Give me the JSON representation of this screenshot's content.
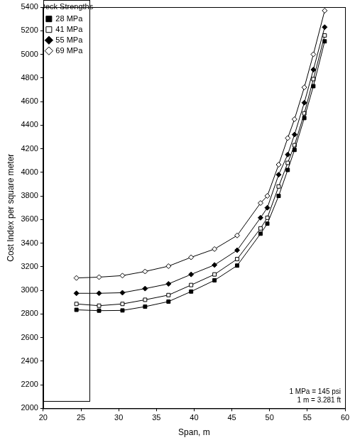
{
  "chart_data": {
    "type": "line",
    "x_label": "Span, m",
    "y_label": "Cost Index per square meter",
    "legend_title": "Deck Strengths",
    "legend": "top-left",
    "grid": false,
    "xlim": [
      20,
      60
    ],
    "xticks": [
      20,
      25,
      30,
      35,
      40,
      45,
      50,
      55,
      60
    ],
    "ylim": [
      2000,
      5400
    ],
    "yticks": [
      2000,
      2200,
      2400,
      2600,
      2800,
      3000,
      3200,
      3400,
      3600,
      3800,
      4000,
      4200,
      4400,
      4600,
      4800,
      5000,
      5200,
      5400
    ],
    "annotations": [
      "1 MPa = 145 psi",
      "1 m = 3.281 ft"
    ],
    "x": [
      24.4,
      27.4,
      30.5,
      33.5,
      36.6,
      39.6,
      42.7,
      45.7,
      48.8,
      49.7,
      51.2,
      52.4,
      53.3,
      54.6,
      55.8,
      57.3
    ],
    "series": [
      {
        "name": "28 MPa",
        "color": "#000000",
        "marker": "square",
        "values": [
          2835,
          2828,
          2830,
          2862,
          2905,
          2990,
          3085,
          3210,
          3480,
          3565,
          3800,
          4020,
          4190,
          4460,
          4730,
          5110
        ]
      },
      {
        "name": "41 MPa",
        "color": "#000000",
        "marker": "square-open",
        "values": [
          2885,
          2870,
          2885,
          2920,
          2960,
          3045,
          3135,
          3265,
          3525,
          3615,
          3880,
          4080,
          4230,
          4500,
          4790,
          5160
        ]
      },
      {
        "name": "55 MPa",
        "color": "#000000",
        "marker": "diamond",
        "values": [
          2975,
          2975,
          2980,
          3015,
          3055,
          3135,
          3215,
          3340,
          3615,
          3700,
          3980,
          4150,
          4320,
          4590,
          4870,
          5230
        ]
      },
      {
        "name": "69 MPa",
        "color": "#000000",
        "marker": "diamond-open",
        "values": [
          3105,
          3112,
          3125,
          3160,
          3205,
          3280,
          3350,
          3465,
          3740,
          3800,
          4065,
          4290,
          4450,
          4720,
          5000,
          5370
        ]
      }
    ]
  }
}
